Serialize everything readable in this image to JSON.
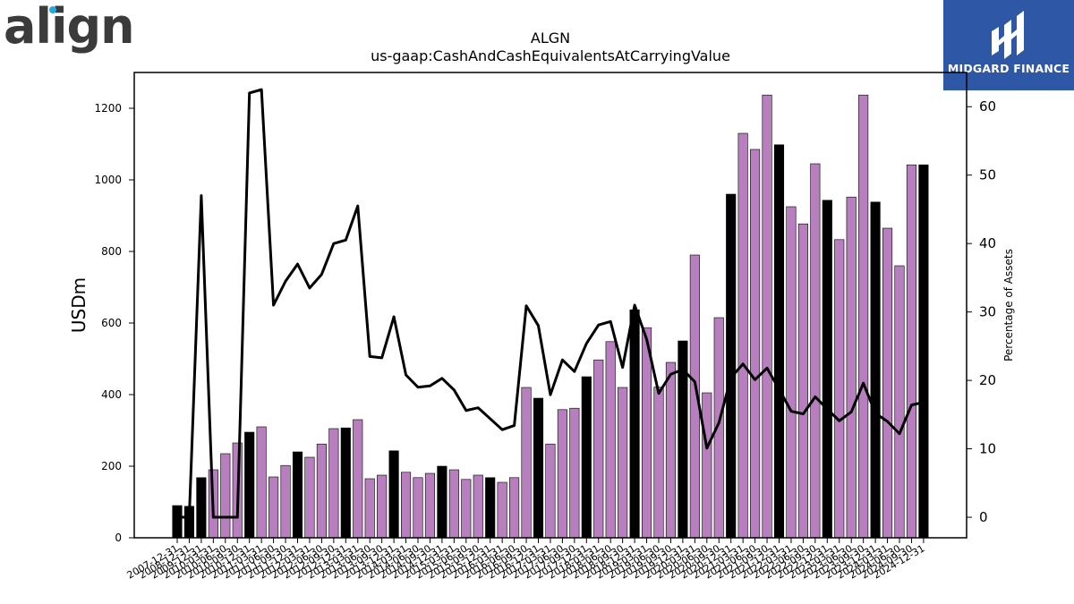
{
  "logo": {
    "brand": "align",
    "partner": "MIDGARD FINANCE"
  },
  "colors": {
    "bar_black": "#000000",
    "bar_purple": "#b77fbd",
    "line": "#000000",
    "badge": "#2e57a6",
    "logo_dot": "#21a9e1"
  },
  "chart_data": {
    "type": "bar",
    "title": "ALGN",
    "subtitle": "us-gaap:CashAndCashEquivalentsAtCarryingValue",
    "ylabel": "USDm",
    "y2label": "Percentage of Assets",
    "ylim": [
      0,
      1300
    ],
    "y2lim": [
      -3,
      65
    ],
    "yticks": [
      0,
      200,
      400,
      600,
      800,
      1000,
      1200
    ],
    "y2ticks": [
      0,
      10,
      20,
      30,
      40,
      50,
      60
    ],
    "legend": "none",
    "grid": false,
    "categories": [
      "2007-12-31",
      "2008-12-31",
      "2009-12-31",
      "2010-03-31",
      "2010-06-30",
      "2010-09-30",
      "2010-12-31",
      "2011-03-31",
      "2011-06-30",
      "2011-09-30",
      "2011-12-31",
      "2012-03-31",
      "2012-06-30",
      "2012-09-30",
      "2012-12-31",
      "2013-03-31",
      "2013-06-30",
      "2013-09-30",
      "2013-12-31",
      "2014-03-31",
      "2014-06-30",
      "2014-09-30",
      "2014-12-31",
      "2015-03-31",
      "2015-06-30",
      "2015-09-30",
      "2015-12-31",
      "2016-03-31",
      "2016-06-30",
      "2016-09-30",
      "2016-12-31",
      "2017-03-31",
      "2017-06-30",
      "2017-09-30",
      "2017-12-31",
      "2018-03-31",
      "2018-06-30",
      "2018-09-30",
      "2018-12-31",
      "2019-03-31",
      "2019-06-30",
      "2019-09-30",
      "2019-12-31",
      "2020-03-31",
      "2020-06-30",
      "2020-09-30",
      "2020-12-31",
      "2021-03-31",
      "2021-06-30",
      "2021-09-30",
      "2021-12-31",
      "2022-03-31",
      "2022-06-30",
      "2022-09-30",
      "2022-12-31",
      "2023-03-31",
      "2023-06-30",
      "2023-09-30",
      "2023-12-31",
      "2024-03-31",
      "2024-06-30",
      "2024-09-30",
      "2024-12-31"
    ],
    "series": [
      {
        "kind": "bar",
        "values": [
          90,
          88,
          168,
          190,
          235,
          265,
          295,
          310,
          170,
          202,
          240,
          225,
          262,
          305,
          307,
          330,
          165,
          175,
          243,
          183,
          168,
          180,
          200,
          190,
          163,
          175,
          168,
          155,
          168,
          420,
          390,
          262,
          358,
          362,
          450,
          497,
          548,
          420,
          637,
          587,
          421,
          490,
          550,
          790,
          405,
          615,
          960,
          1130,
          1085,
          1237,
          1098,
          925,
          877,
          1045,
          943,
          833,
          952,
          1237,
          938,
          865,
          760,
          1042,
          1042
        ],
        "annual_flags": [
          1,
          1,
          1,
          0,
          0,
          0,
          1,
          0,
          0,
          0,
          1,
          0,
          0,
          0,
          1,
          0,
          0,
          0,
          1,
          0,
          0,
          0,
          1,
          0,
          0,
          0,
          1,
          0,
          0,
          0,
          1,
          0,
          0,
          0,
          1,
          0,
          0,
          0,
          1,
          0,
          0,
          0,
          1,
          0,
          0,
          0,
          1,
          0,
          0,
          0,
          1,
          0,
          0,
          0,
          1,
          0,
          0,
          0,
          1,
          0,
          0,
          0,
          1
        ]
      },
      {
        "kind": "line",
        "axis": "right",
        "values": [
          0,
          0,
          47,
          0,
          0,
          0,
          62,
          62.5,
          31,
          34.5,
          37,
          33.5,
          35.5,
          40,
          40.5,
          45.5,
          23.5,
          23.3,
          29.3,
          20.8,
          19,
          19.2,
          20.3,
          18.6,
          15.6,
          16,
          14.4,
          12.8,
          13.4,
          30.9,
          28,
          17.9,
          23,
          21.3,
          25.4,
          28.1,
          28.6,
          21.9,
          31,
          26,
          18.1,
          20.9,
          21.6,
          19.8,
          10.1,
          13.8,
          20.4,
          22.4,
          20.1,
          21.8,
          18.7,
          15.5,
          15.1,
          17.6,
          15.8,
          14.1,
          15.4,
          19.6,
          15.2,
          14,
          12.2,
          16.4,
          16.8
        ]
      }
    ]
  }
}
